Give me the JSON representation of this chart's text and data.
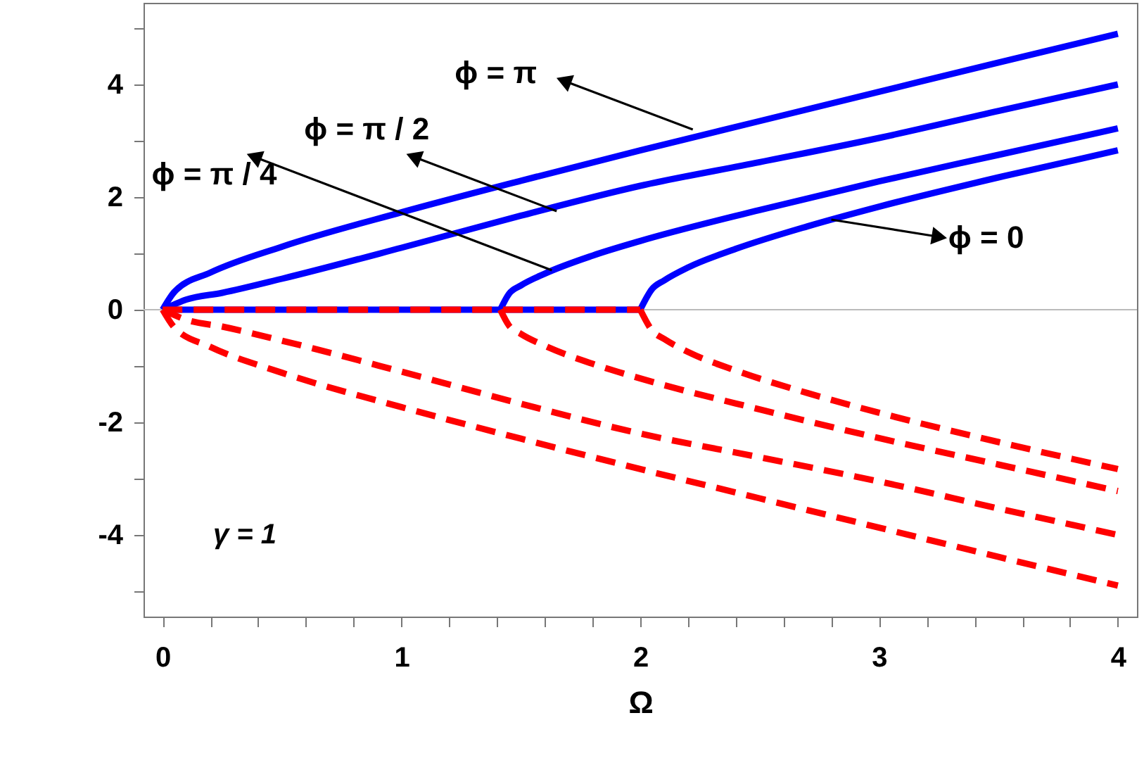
{
  "chart_data": {
    "type": "line",
    "xlabel": "Ω",
    "xlim": [
      -0.08,
      4.08
    ],
    "ylim": [
      -5.45,
      5.45
    ],
    "xticks": [
      0,
      {
        "value": 0.2,
        "label": null
      },
      {
        "value": 0.4,
        "label": null
      },
      {
        "value": 0.6,
        "label": null
      },
      {
        "value": 0.8,
        "label": null
      },
      1,
      {
        "value": 1.2,
        "label": null
      },
      {
        "value": 1.4,
        "label": null
      },
      {
        "value": 1.6,
        "label": null
      },
      {
        "value": 1.8,
        "label": null
      },
      2,
      {
        "value": 2.2,
        "label": null
      },
      {
        "value": 2.4,
        "label": null
      },
      {
        "value": 2.6,
        "label": null
      },
      {
        "value": 2.8,
        "label": null
      },
      3,
      {
        "value": 3.2,
        "label": null
      },
      {
        "value": 3.4,
        "label": null
      },
      {
        "value": 3.6,
        "label": null
      },
      {
        "value": 3.8,
        "label": null
      },
      4
    ],
    "yticks": [
      {
        "value": -5,
        "label": null
      },
      -4,
      {
        "value": -3,
        "label": null
      },
      -2,
      {
        "value": -1,
        "label": null
      },
      0,
      {
        "value": 1,
        "label": null
      },
      2,
      {
        "value": 3,
        "label": null
      },
      4,
      {
        "value": 5,
        "label": null
      }
    ],
    "grid": false,
    "marker": "none",
    "series": [
      {
        "color": "#0000ff",
        "line_style": "solid",
        "x": [
          0,
          0.05,
          0.2,
          0.5,
          1,
          1.5,
          2,
          2.5,
          3,
          3.5,
          4
        ],
        "values": [
          0,
          0.32,
          0.66,
          1.12,
          1.73,
          2.29,
          2.83,
          3.35,
          3.87,
          4.39,
          4.9
        ]
      },
      {
        "color": "#0000ff",
        "line_style": "solid",
        "x": [
          0,
          0.1,
          0.25,
          0.5,
          1,
          1.5,
          2,
          2.5,
          3,
          3.5,
          4
        ],
        "values": [
          0,
          0.18,
          0.3,
          0.55,
          1.1,
          1.67,
          2.2,
          2.62,
          3.05,
          3.53,
          4.0
        ]
      },
      {
        "color": "#0000ff",
        "line_style": "solid",
        "x": [
          1.414,
          1.45,
          1.5,
          1.6,
          1.8,
          2,
          2.5,
          3,
          3.5,
          4
        ],
        "values": [
          0,
          0.28,
          0.43,
          0.64,
          0.96,
          1.22,
          1.77,
          2.28,
          2.75,
          3.22
        ]
      },
      {
        "color": "#0000ff",
        "line_style": "solid",
        "x": [
          2,
          2.05,
          2.1,
          2.2,
          2.4,
          2.7,
          3,
          3.5,
          4
        ],
        "values": [
          0,
          0.37,
          0.52,
          0.75,
          1.08,
          1.48,
          1.83,
          2.35,
          2.83
        ]
      },
      {
        "color": "#0000ff",
        "line_style": "solid",
        "x": [
          0,
          2
        ],
        "values": [
          0,
          0
        ]
      },
      {
        "color": "#ff0000",
        "line_style": "dashed",
        "x": [
          0,
          2
        ],
        "values": [
          0,
          0
        ]
      },
      {
        "color": "#ff0000",
        "line_style": "dashed",
        "x": [
          0,
          0.05,
          0.2,
          0.5,
          1,
          1.5,
          2,
          2.5,
          3,
          3.5,
          4
        ],
        "values": [
          0,
          -0.32,
          -0.66,
          -1.12,
          -1.73,
          -2.29,
          -2.83,
          -3.35,
          -3.87,
          -4.39,
          -4.9
        ]
      },
      {
        "color": "#ff0000",
        "line_style": "dashed",
        "x": [
          0,
          0.1,
          0.25,
          0.5,
          1,
          1.5,
          2,
          2.5,
          3,
          3.5,
          4
        ],
        "values": [
          0,
          -0.18,
          -0.3,
          -0.55,
          -1.1,
          -1.67,
          -2.2,
          -2.62,
          -3.05,
          -3.53,
          -4.0
        ]
      },
      {
        "color": "#ff0000",
        "line_style": "dashed",
        "x": [
          1.414,
          1.45,
          1.5,
          1.6,
          1.8,
          2,
          2.5,
          3,
          3.5,
          4
        ],
        "values": [
          0,
          -0.28,
          -0.43,
          -0.64,
          -0.96,
          -1.22,
          -1.77,
          -2.28,
          -2.75,
          -3.22
        ]
      },
      {
        "color": "#ff0000",
        "line_style": "dashed",
        "x": [
          2,
          2.05,
          2.1,
          2.2,
          2.4,
          2.7,
          3,
          3.5,
          4
        ],
        "values": [
          0,
          -0.37,
          -0.52,
          -0.75,
          -1.08,
          -1.48,
          -1.83,
          -2.35,
          -2.83
        ]
      }
    ],
    "ref_lines": [
      {
        "axis": "y",
        "value": 0,
        "color": "#bbbbbb",
        "line_style": "solid"
      }
    ],
    "annotations": [
      {
        "text": "ϕ = π",
        "x": 2.22,
        "y": 3.2
      },
      {
        "text": "ϕ = π / 2",
        "x": 1.65,
        "y": 1.75
      },
      {
        "text": "ϕ = π / 4",
        "x": 1.63,
        "y": 0.7
      },
      {
        "text": "ϕ = 0",
        "x": 2.8,
        "y": 1.6
      },
      "γ = 1"
    ]
  }
}
